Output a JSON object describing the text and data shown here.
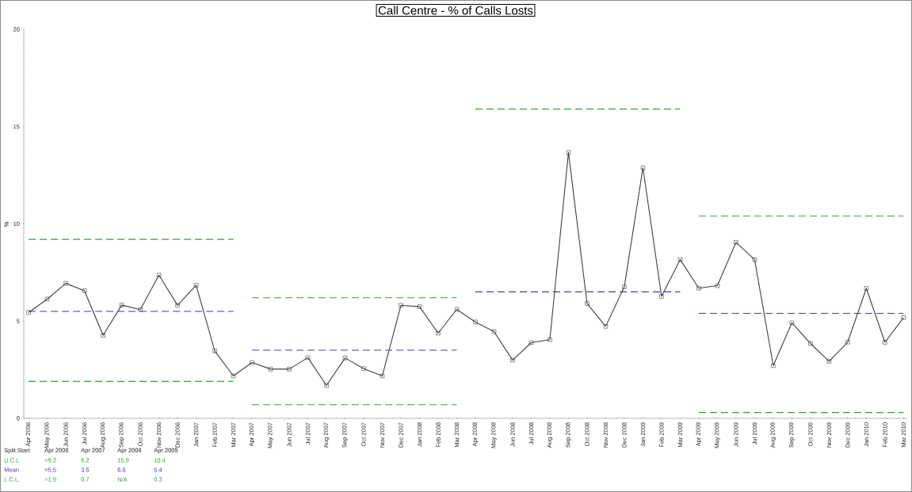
{
  "chart_data": {
    "type": "line",
    "title": "Call Centre - % of Calls Losts",
    "ylabel": "%",
    "categories": [
      "Apr 2006",
      "May 2006",
      "Jun 2006",
      "Jul 2006",
      "Aug 2006",
      "Sep 2006",
      "Oct 2006",
      "Nov 2006",
      "Dec 2006",
      "Jan 2007",
      "Feb 2007",
      "Mar 2007",
      "Apr 2007",
      "May 2007",
      "Jun 2007",
      "Jul 2007",
      "Aug 2007",
      "Sep 2007",
      "Oct 2007",
      "Nov 2007",
      "Dec 2007",
      "Jan 2008",
      "Feb 2008",
      "Mar 2008",
      "Apr 2008",
      "May 2008",
      "Jun 2008",
      "Jul 2008",
      "Aug 2008",
      "Sep 2008",
      "Oct 2008",
      "Nov 2008",
      "Dec 2008",
      "Jan 2009",
      "Feb 2009",
      "Mar 2009",
      "Apr 2009",
      "May 2009",
      "Jun 2009",
      "Jul 2009",
      "Aug 2009",
      "Sep 2009",
      "Oct 2009",
      "Nov 2009",
      "Dec 2009",
      "Jan 2010",
      "Feb 2010",
      "Mar 2010"
    ],
    "series": [
      {
        "color": "#3c9a3c",
        "line_style": "dashed",
        "marker": "none",
        "values": [
          9.2,
          9.2,
          9.2,
          9.2,
          9.2,
          9.2,
          9.2,
          9.2,
          9.2,
          9.2,
          9.2,
          9.2,
          null,
          null,
          null,
          null,
          null,
          null,
          null,
          null,
          null,
          null,
          null,
          null,
          null,
          null,
          null,
          null,
          null,
          null,
          null,
          null,
          null,
          null,
          null,
          null,
          null,
          null,
          null,
          null,
          null,
          null,
          null,
          null,
          null,
          null,
          null,
          null
        ]
      },
      {
        "color": "#3c9a3c",
        "line_style": "dashed",
        "marker": "none",
        "values": [
          null,
          null,
          null,
          null,
          null,
          null,
          null,
          null,
          null,
          null,
          null,
          null,
          6.2,
          6.2,
          6.2,
          6.2,
          6.2,
          6.2,
          6.2,
          6.2,
          6.2,
          6.2,
          6.2,
          6.2,
          null,
          null,
          null,
          null,
          null,
          null,
          null,
          null,
          null,
          null,
          null,
          null,
          null,
          null,
          null,
          null,
          null,
          null,
          null,
          null,
          null,
          null,
          null,
          null
        ]
      },
      {
        "color": "#3c9a3c",
        "line_style": "dashed",
        "marker": "none",
        "values": [
          null,
          null,
          null,
          null,
          null,
          null,
          null,
          null,
          null,
          null,
          null,
          null,
          null,
          null,
          null,
          null,
          null,
          null,
          null,
          null,
          null,
          null,
          null,
          null,
          15.9,
          15.9,
          15.9,
          15.9,
          15.9,
          15.9,
          15.9,
          15.9,
          15.9,
          15.9,
          15.9,
          15.9,
          null,
          null,
          null,
          null,
          null,
          null,
          null,
          null,
          null,
          null,
          null,
          null
        ]
      },
      {
        "color": "#3c9a3c",
        "line_style": "dashed",
        "marker": "none",
        "values": [
          null,
          null,
          null,
          null,
          null,
          null,
          null,
          null,
          null,
          null,
          null,
          null,
          null,
          null,
          null,
          null,
          null,
          null,
          null,
          null,
          null,
          null,
          null,
          null,
          null,
          null,
          null,
          null,
          null,
          null,
          null,
          null,
          null,
          null,
          null,
          null,
          10.4,
          10.4,
          10.4,
          10.4,
          10.4,
          10.4,
          10.4,
          10.4,
          10.4,
          10.4,
          10.4,
          10.4
        ]
      },
      {
        "color": "#4040a8",
        "line_style": "dashed",
        "marker": "none",
        "values": [
          5.5,
          5.5,
          5.5,
          5.5,
          5.5,
          5.5,
          5.5,
          5.5,
          5.5,
          5.5,
          5.5,
          5.5,
          null,
          null,
          null,
          null,
          null,
          null,
          null,
          null,
          null,
          null,
          null,
          null,
          null,
          null,
          null,
          null,
          null,
          null,
          null,
          null,
          null,
          null,
          null,
          null,
          null,
          null,
          null,
          null,
          null,
          null,
          null,
          null,
          null,
          null,
          null,
          null
        ]
      },
      {
        "color": "#4040a8",
        "line_style": "dashed",
        "marker": "none",
        "values": [
          null,
          null,
          null,
          null,
          null,
          null,
          null,
          null,
          null,
          null,
          null,
          null,
          3.5,
          3.5,
          3.5,
          3.5,
          3.5,
          3.5,
          3.5,
          3.5,
          3.5,
          3.5,
          3.5,
          3.5,
          null,
          null,
          null,
          null,
          null,
          null,
          null,
          null,
          null,
          null,
          null,
          null,
          null,
          null,
          null,
          null,
          null,
          null,
          null,
          null,
          null,
          null,
          null,
          null
        ]
      },
      {
        "color": "#4040a8",
        "line_style": "dashed",
        "marker": "none",
        "values": [
          null,
          null,
          null,
          null,
          null,
          null,
          null,
          null,
          null,
          null,
          null,
          null,
          null,
          null,
          null,
          null,
          null,
          null,
          null,
          null,
          null,
          null,
          null,
          null,
          6.5,
          6.5,
          6.5,
          6.5,
          6.5,
          6.5,
          6.5,
          6.5,
          6.5,
          6.5,
          6.5,
          6.5,
          null,
          null,
          null,
          null,
          null,
          null,
          null,
          null,
          null,
          null,
          null,
          null
        ]
      },
      {
        "color": "#4040a8",
        "line_style": "dashed",
        "marker": "none",
        "values": [
          null,
          null,
          null,
          null,
          null,
          null,
          null,
          null,
          null,
          null,
          null,
          null,
          null,
          null,
          null,
          null,
          null,
          null,
          null,
          null,
          null,
          null,
          null,
          null,
          null,
          null,
          null,
          null,
          null,
          null,
          null,
          null,
          null,
          null,
          null,
          null,
          5.4,
          5.4,
          5.4,
          5.4,
          5.4,
          5.4,
          5.4,
          5.4,
          5.4,
          5.4,
          5.4,
          5.4
        ]
      },
      {
        "color": "#3c9a3c",
        "line_style": "dashed",
        "marker": "none",
        "values": [
          1.9,
          1.9,
          1.9,
          1.9,
          1.9,
          1.9,
          1.9,
          1.9,
          1.9,
          1.9,
          1.9,
          1.9,
          null,
          null,
          null,
          null,
          null,
          null,
          null,
          null,
          null,
          null,
          null,
          null,
          null,
          null,
          null,
          null,
          null,
          null,
          null,
          null,
          null,
          null,
          null,
          null,
          null,
          null,
          null,
          null,
          null,
          null,
          null,
          null,
          null,
          null,
          null,
          null
        ]
      },
      {
        "color": "#3c9a3c",
        "line_style": "dashed",
        "marker": "none",
        "values": [
          null,
          null,
          null,
          null,
          null,
          null,
          null,
          null,
          null,
          null,
          null,
          null,
          0.7,
          0.7,
          0.7,
          0.7,
          0.7,
          0.7,
          0.7,
          0.7,
          0.7,
          0.7,
          0.7,
          0.7,
          null,
          null,
          null,
          null,
          null,
          null,
          null,
          null,
          null,
          null,
          null,
          null,
          null,
          null,
          null,
          null,
          null,
          null,
          null,
          null,
          null,
          null,
          null,
          null
        ]
      },
      {
        "color": "#3c9a3c",
        "line_style": "dashed",
        "marker": "none",
        "values": [
          null,
          null,
          null,
          null,
          null,
          null,
          null,
          null,
          null,
          null,
          null,
          null,
          null,
          null,
          null,
          null,
          null,
          null,
          null,
          null,
          null,
          null,
          null,
          null,
          null,
          null,
          null,
          null,
          null,
          null,
          null,
          null,
          null,
          null,
          null,
          null,
          0.3,
          0.3,
          0.3,
          0.3,
          0.3,
          0.3,
          0.3,
          0.3,
          0.3,
          0.3,
          0.3,
          0.3
        ]
      },
      {
        "color": "#404040",
        "line_style": "solid",
        "marker": "square",
        "values": [
          5.44,
          6.13,
          6.94,
          6.56,
          4.27,
          5.82,
          5.59,
          7.36,
          5.81,
          6.84,
          3.46,
          2.18,
          2.87,
          2.53,
          2.53,
          3.12,
          1.69,
          3.1,
          2.56,
          2.18,
          5.81,
          5.74,
          4.38,
          5.6,
          4.95,
          4.46,
          2.99,
          3.89,
          4.04,
          13.67,
          5.9,
          4.73,
          6.76,
          12.88,
          6.27,
          8.16,
          6.69,
          6.82,
          9.05,
          8.16,
          2.71,
          4.91,
          3.85,
          2.93,
          3.92,
          6.68,
          3.91,
          5.18
        ]
      }
    ],
    "ylim": [
      0,
      20
    ],
    "yticks": [
      0,
      5,
      10,
      15,
      20
    ],
    "annotations": [
      "Split Start",
      "Apr 2006",
      "Apr 2007",
      "Apr 2008",
      "Apr 2009",
      "U.C.L.",
      "=9.2",
      "6.2",
      "15.9",
      "10.4",
      "Mean",
      "=5.5",
      "3.5",
      "6.5",
      "5.4",
      "L.C.L.",
      "=1.9",
      "0.7",
      "N/A",
      "0.3"
    ]
  }
}
